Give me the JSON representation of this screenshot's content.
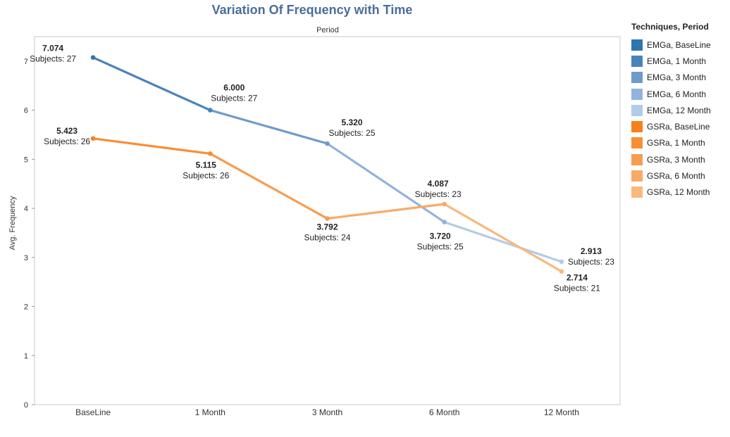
{
  "chart_data": {
    "type": "line",
    "title": "Variation Of Frequency with Time",
    "column_header": "Period",
    "xlabel": "",
    "ylabel": "Avg. Frequency",
    "categories": [
      "BaseLine",
      "1 Month",
      "3 Month",
      "6 Month",
      "12 Month"
    ],
    "ylim": [
      0,
      7.5
    ],
    "yticks": [
      0,
      1,
      2,
      3,
      4,
      5,
      6,
      7
    ],
    "grid": false,
    "legend_position": "right",
    "series": [
      {
        "technique": "EMGa",
        "values": [
          7.074,
          6.0,
          5.32,
          3.72,
          2.913
        ],
        "value_labels": [
          "7.074",
          "6.000",
          "5.320",
          "3.720",
          "2.913"
        ],
        "subjects": [
          "Subjects: 27",
          "Subjects: 27",
          "Subjects: 25",
          "Subjects: 25",
          "Subjects: 23"
        ],
        "colors": [
          "#2f75b0",
          "#4a82bb",
          "#6f9bcb",
          "#92b3dc",
          "#b2cbe8"
        ]
      },
      {
        "technique": "GSRa",
        "values": [
          5.423,
          5.115,
          3.792,
          4.087,
          2.714
        ],
        "value_labels": [
          "5.423",
          "5.115",
          "3.792",
          "4.087",
          "2.714"
        ],
        "subjects": [
          "Subjects: 26",
          "Subjects: 26",
          "Subjects: 24",
          "Subjects: 23",
          "Subjects: 21"
        ],
        "colors": [
          "#f7801c",
          "#f88e35",
          "#f89c4f",
          "#f9aa66",
          "#f9b87d"
        ]
      }
    ],
    "legend": {
      "title": "Techniques, Period",
      "items": [
        {
          "label": "EMGa, BaseLine",
          "color": "#2f75b0"
        },
        {
          "label": "EMGa, 1 Month",
          "color": "#4a82bb"
        },
        {
          "label": "EMGa, 3 Month",
          "color": "#6f9bcb"
        },
        {
          "label": "EMGa, 6 Month",
          "color": "#92b3dc"
        },
        {
          "label": "EMGa, 12 Month",
          "color": "#b2cbe8"
        },
        {
          "label": "GSRa, BaseLine",
          "color": "#f7801c"
        },
        {
          "label": "GSRa, 1 Month",
          "color": "#f88e35"
        },
        {
          "label": "GSRa, 3 Month",
          "color": "#f89c4f"
        },
        {
          "label": "GSRa, 6 Month",
          "color": "#f9aa66"
        },
        {
          "label": "GSRa, 12 Month",
          "color": "#f9b87d"
        }
      ]
    }
  }
}
